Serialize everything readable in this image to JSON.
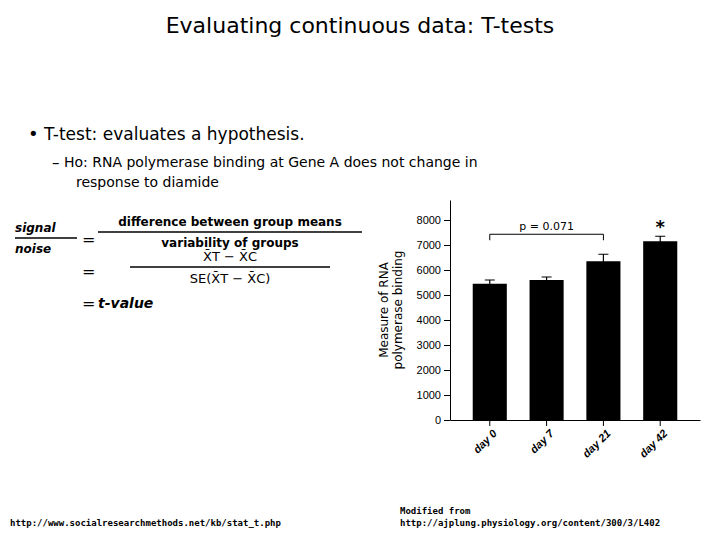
{
  "chart_data": {
    "type": "bar",
    "title": "Evaluating continuous data: T-tests",
    "categories": [
      "day 0",
      "day 7",
      "day 21",
      "day 42"
    ],
    "values": [
      5450,
      5600,
      6350,
      7150
    ],
    "errors": [
      150,
      120,
      280,
      200
    ],
    "color": "#000000",
    "y_label": "Measure of RNA\npolymerase binding",
    "ylim": [
      0,
      8800
    ],
    "yticks": [
      0,
      1000,
      2000,
      3000,
      4000,
      5000,
      6000,
      7000,
      8000
    ],
    "annotations": [
      {
        "text": "•"
      },
      {
        "text": "T-test: evaluates a hypothesis."
      },
      {
        "text": "–"
      },
      {
        "text": "Ho: RNA polymerase binding at Gene A does not change in"
      },
      {
        "text": "response to diamide"
      },
      {
        "text": "signal"
      },
      {
        "text": "noise"
      },
      {
        "text": "="
      },
      {
        "text": "difference between group means"
      },
      {
        "text": "variability of groups"
      },
      {
        "text": "="
      },
      {
        "text": "X̄T − X̄C"
      },
      {
        "text": "SE(X̄T − X̄C)"
      },
      {
        "text": "="
      },
      {
        "text": "t-value"
      },
      {
        "text": "http://www.socialresearchmethods.net/kb/stat_t.php"
      },
      {
        "text": "Modified from\nhttp://ajplung.physiology.org/content/300/3/L402"
      },
      {
        "text": "p = 0.071",
        "from": "day 0",
        "to": "day 21"
      },
      {
        "text": "*",
        "category": "day 42"
      }
    ]
  }
}
